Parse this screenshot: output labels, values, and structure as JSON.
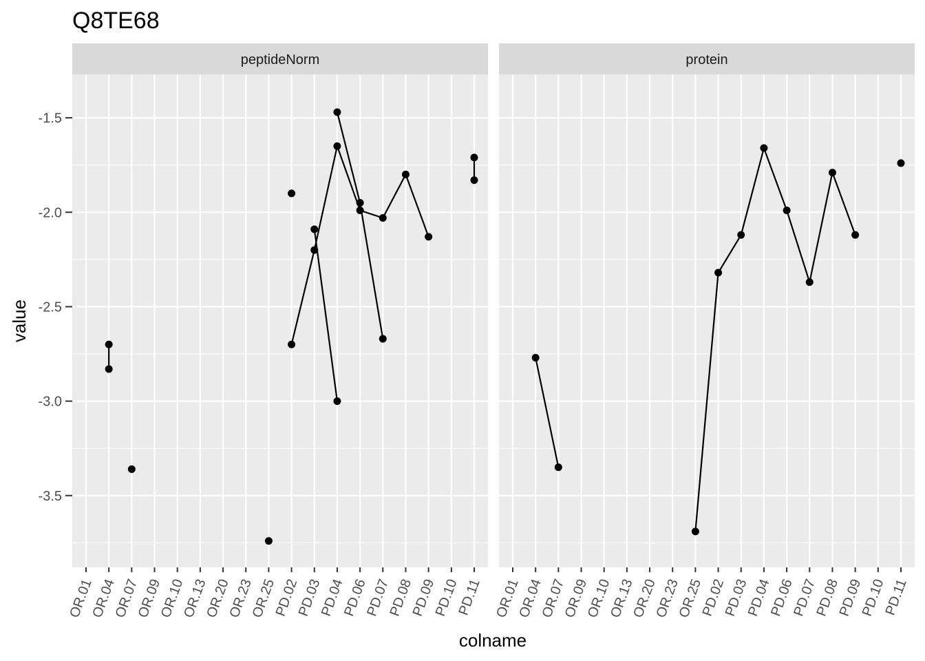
{
  "chart_data": {
    "type": "line",
    "title": "Q8TE68",
    "xlabel": "colname",
    "ylabel": "value",
    "categories": [
      "OR.01",
      "OR.04",
      "OR.07",
      "OR.09",
      "OR.10",
      "OR.13",
      "OR.20",
      "OR.23",
      "OR.25",
      "PD.02",
      "PD.03",
      "PD.04",
      "PD.06",
      "PD.07",
      "PD.08",
      "PD.09",
      "PD.10",
      "PD.11"
    ],
    "ylim": [
      -3.88,
      -1.27
    ],
    "yticks": [
      -1.5,
      -2.0,
      -2.5,
      -3.0,
      -3.5
    ],
    "ytick_labels": [
      "-1.5",
      "-2.0",
      "-2.5",
      "-3.0",
      "-3.5"
    ],
    "grid": true,
    "panels": [
      {
        "name": "peptideNorm",
        "series": [
          {
            "points": [
              [
                "OR.04",
                -2.7
              ],
              [
                "OR.04",
                -2.83
              ]
            ]
          },
          {
            "points": [
              [
                "OR.07",
                -3.36
              ]
            ]
          },
          {
            "points": [
              [
                "OR.25",
                -3.74
              ]
            ]
          },
          {
            "points": [
              [
                "PD.02",
                -2.7
              ],
              [
                "PD.03",
                -2.2
              ],
              [
                "PD.04",
                -1.65
              ],
              [
                "PD.06",
                -1.99
              ],
              [
                "PD.07",
                -2.03
              ],
              [
                "PD.08",
                -1.8
              ],
              [
                "PD.09",
                -2.13
              ]
            ]
          },
          {
            "points": [
              [
                "PD.02",
                -1.9
              ]
            ]
          },
          {
            "points": [
              [
                "PD.03",
                -2.09
              ],
              [
                "PD.04",
                -3.0
              ]
            ]
          },
          {
            "points": [
              [
                "PD.04",
                -1.47
              ],
              [
                "PD.06",
                -1.95
              ],
              [
                "PD.07",
                -2.67
              ]
            ]
          },
          {
            "points": [
              [
                "PD.11",
                -1.71
              ],
              [
                "PD.11",
                -1.83
              ]
            ]
          }
        ]
      },
      {
        "name": "protein",
        "series": [
          {
            "points": [
              [
                "OR.04",
                -2.77
              ],
              [
                "OR.07",
                -3.35
              ]
            ]
          },
          {
            "points": [
              [
                "OR.25",
                -3.69
              ],
              [
                "PD.02",
                -2.32
              ],
              [
                "PD.03",
                -2.12
              ],
              [
                "PD.04",
                -1.66
              ],
              [
                "PD.06",
                -1.99
              ],
              [
                "PD.07",
                -2.37
              ],
              [
                "PD.08",
                -1.79
              ],
              [
                "PD.09",
                -2.12
              ]
            ]
          },
          {
            "points": [
              [
                "PD.11",
                -1.74
              ]
            ]
          }
        ]
      }
    ],
    "colors": {
      "panel_background": "#ebebeb",
      "strip_background": "#d9d9d9",
      "grid": "#ffffff",
      "marks": "#000000",
      "tick_text": "#4d4d4d"
    }
  }
}
